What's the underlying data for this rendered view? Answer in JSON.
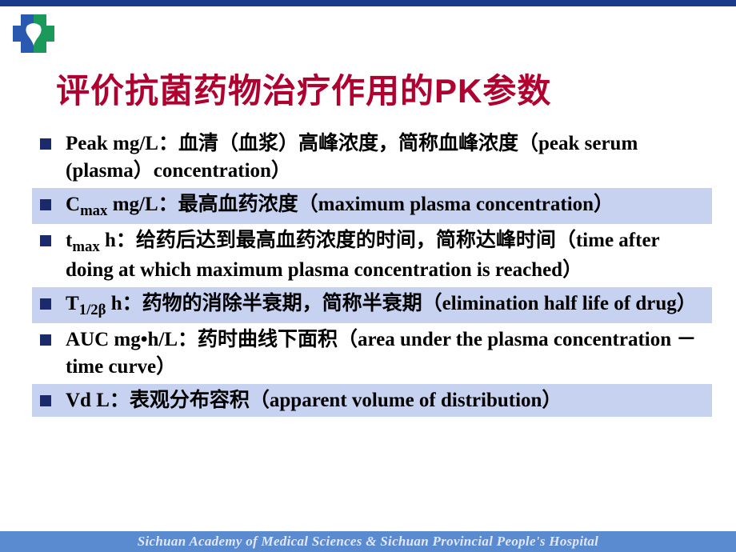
{
  "colors": {
    "top_bar": "#1a3a8a",
    "title": "#b00030",
    "bullet": "#1a2a6a",
    "highlight_bg": "#c7d2f0",
    "footer_bg": "#5a8ad0",
    "footer_text": "#e0e8ff",
    "logo_green": "#1a9a5a",
    "logo_blue": "#2a5ab0",
    "body_text": "#000000",
    "background": "#ffffff"
  },
  "typography": {
    "title_fontsize": 42,
    "body_fontsize": 25,
    "footer_fontsize": 17,
    "title_family": "SimHei",
    "body_family": "Times New Roman / SimSun"
  },
  "title": "评价抗菌药物治疗作用的PK参数",
  "bullets": [
    {
      "highlight": false,
      "prefix": "Peak mg/L",
      "text": "：血清（血浆）高峰浓度，简称血峰浓度（peak serum (plasma）concentration）"
    },
    {
      "highlight": true,
      "prefix_html": "C<span class='sub'>max</span> mg/L",
      "text": "：最高血药浓度（maximum plasma concentration）"
    },
    {
      "highlight": false,
      "prefix_html": "t<span class='sub'>max</span> h",
      "text": "：给药后达到最高血药浓度的时间，简称达峰时间（time after doing at which maximum plasma concentration is reached）"
    },
    {
      "highlight": true,
      "prefix_html": "T<span class='sub'>1/2β</span> h",
      "text": "：药物的消除半衰期，简称半衰期（elimination half life of drug）"
    },
    {
      "highlight": false,
      "prefix": "AUC mg•h/L",
      "text": "：药时曲线下面积（area under the plasma concentration － time curve）"
    },
    {
      "highlight": true,
      "prefix": "Vd L",
      "text": "：表观分布容积（apparent volume of distribution）"
    }
  ],
  "footer": "Sichuan Academy of Medical Sciences & Sichuan Provincial People's Hospital"
}
